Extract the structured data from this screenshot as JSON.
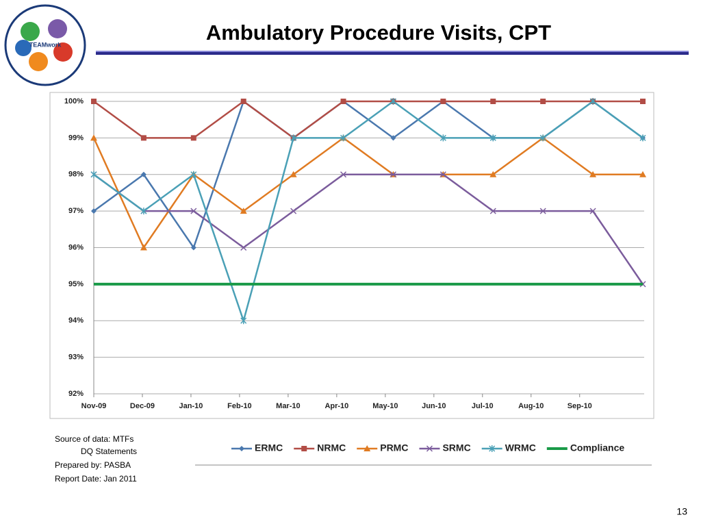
{
  "chart_data": {
    "type": "line",
    "title": "Ambulatory Procedure Visits, CPT",
    "categories": [
      "Nov-09",
      "Dec-09",
      "Jan-10",
      "Feb-10",
      "Mar-10",
      "Apr-10",
      "May-10",
      "Jun-10",
      "Jul-10",
      "Aug-10",
      "Sep-10",
      null
    ],
    "series": [
      {
        "name": "ERMC",
        "color": "#4a78ae",
        "marker": "diamond",
        "values": [
          97,
          98,
          96,
          100,
          99,
          100,
          99,
          100,
          99,
          99,
          100,
          99
        ]
      },
      {
        "name": "NRMC",
        "color": "#b24d46",
        "marker": "square",
        "values": [
          100,
          99,
          99,
          100,
          99,
          100,
          100,
          100,
          100,
          100,
          100,
          100
        ]
      },
      {
        "name": "PRMC",
        "color": "#e07b22",
        "marker": "triangle",
        "values": [
          99,
          96,
          98,
          97,
          98,
          99,
          98,
          98,
          98,
          99,
          98,
          98
        ]
      },
      {
        "name": "SRMC",
        "color": "#7b5c9c",
        "marker": "cross",
        "values": [
          98,
          97,
          97,
          96,
          97,
          98,
          98,
          98,
          97,
          97,
          97,
          95
        ]
      },
      {
        "name": "WRMC",
        "color": "#4aa0b6",
        "marker": "star",
        "values": [
          98,
          97,
          98,
          94,
          99,
          99,
          100,
          99,
          99,
          99,
          100,
          99
        ]
      },
      {
        "name": "Compliance",
        "color": "#1a9a48",
        "marker": "none",
        "values": [
          95,
          95,
          95,
          95,
          95,
          95,
          95,
          95,
          95,
          95,
          95,
          95
        ]
      }
    ],
    "ylim": [
      92,
      100
    ],
    "yticks": [
      {
        "value": 92,
        "label": "92%"
      },
      {
        "value": 93,
        "label": "93%"
      },
      {
        "value": 94,
        "label": "94%"
      },
      {
        "value": 95,
        "label": "95%"
      },
      {
        "value": 96,
        "label": "96%"
      },
      {
        "value": 97,
        "label": "97%"
      },
      {
        "value": 98,
        "label": "98%"
      },
      {
        "value": 99,
        "label": "99%"
      },
      {
        "value": 100,
        "label": "100%"
      }
    ],
    "grid": true,
    "legend": "bottom"
  },
  "notes": [
    "Source of data:  MTFs",
    "DQ Statements",
    "Prepared by:  PASBA",
    "Report Date: Jan 2011"
  ],
  "page_number": "13",
  "logo": {
    "text": "TEAMwork"
  }
}
